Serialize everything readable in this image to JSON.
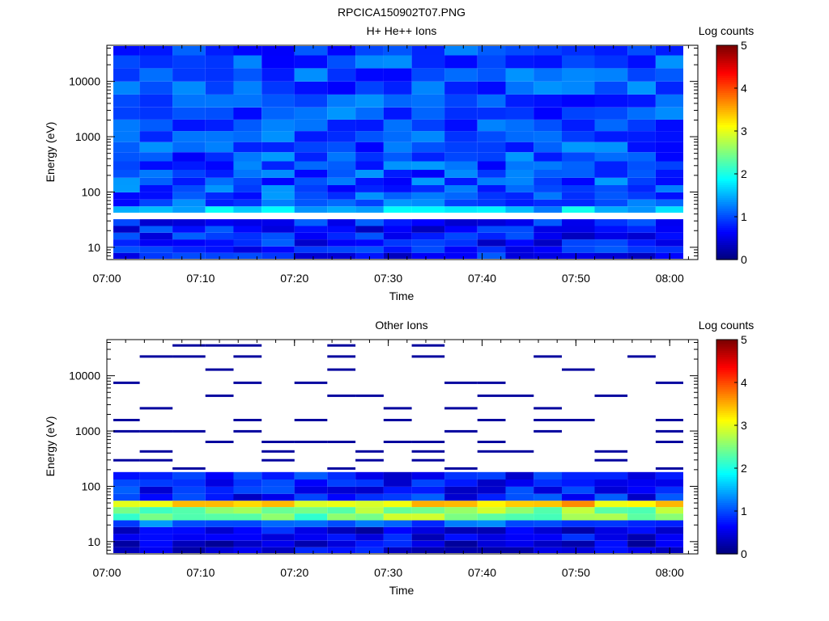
{
  "title": "RPCICA150902T07.PNG",
  "colorbar_label": "Log counts",
  "colormap": [
    "#00007f",
    "#0000ff",
    "#007fff",
    "#00ffff",
    "#7fff7f",
    "#ffff00",
    "#ff7f00",
    "#ff0000",
    "#7f0000"
  ],
  "chart_data": [
    {
      "type": "heatmap",
      "title": "H+ He++ Ions",
      "xlabel": "Time",
      "ylabel": "Energy (eV)",
      "x_ticks": [
        "07:00",
        "07:10",
        "07:20",
        "07:30",
        "07:40",
        "07:50",
        "08:00"
      ],
      "x_range": [
        "07:00",
        "08:03"
      ],
      "y_scale": "log",
      "y_ticks": [
        "10",
        "100",
        "1000",
        "10000"
      ],
      "y_range": [
        6,
        45000
      ],
      "color_range": [
        0,
        5
      ],
      "colorbar_ticks": [
        "0",
        "1",
        "2",
        "3",
        "4",
        "5"
      ],
      "time_bins": [
        "07:02",
        "07:05",
        "07:09",
        "07:12",
        "07:15",
        "07:18",
        "07:22",
        "07:25",
        "07:28",
        "07:31",
        "07:34",
        "07:38",
        "07:41",
        "07:44",
        "07:47",
        "07:50",
        "07:54",
        "07:57",
        "08:00"
      ],
      "energy_bins_eV": [
        7,
        9,
        12,
        16,
        21,
        28,
        37,
        48,
        63,
        85,
        114,
        155,
        212,
        300,
        430,
        640,
        1000,
        1600,
        2600,
        4400,
        7600,
        13000,
        23000,
        38000
      ],
      "bands": [
        {
          "energy_range_eV": [
            6,
            30
          ],
          "log_counts": 0.7
        },
        {
          "energy_range_eV": [
            30,
            35
          ],
          "log_counts": 0.9
        },
        {
          "energy_range_eV": [
            40,
            60
          ],
          "log_counts": 1.6
        },
        {
          "energy_range_eV": [
            60,
            45000
          ],
          "log_counts": 1.0
        }
      ]
    },
    {
      "type": "heatmap",
      "title": "Other Ions",
      "xlabel": "Time",
      "ylabel": "Energy (eV)",
      "x_ticks": [
        "07:00",
        "07:10",
        "07:20",
        "07:30",
        "07:40",
        "07:50",
        "08:00"
      ],
      "x_range": [
        "07:00",
        "08:03"
      ],
      "y_scale": "log",
      "y_ticks": [
        "10",
        "100",
        "1000",
        "10000"
      ],
      "y_range": [
        6,
        45000
      ],
      "color_range": [
        0,
        5
      ],
      "colorbar_ticks": [
        "0",
        "1",
        "2",
        "3",
        "4",
        "5"
      ],
      "time_bins": [
        "07:02",
        "07:05",
        "07:09",
        "07:12",
        "07:15",
        "07:18",
        "07:22",
        "07:25",
        "07:28",
        "07:31",
        "07:34",
        "07:38",
        "07:41",
        "07:44",
        "07:47",
        "07:50",
        "07:54",
        "07:57",
        "08:00"
      ],
      "energy_bins_eV": [
        7,
        9,
        12,
        16,
        21,
        28,
        37,
        48,
        63,
        85,
        114,
        155,
        212,
        300,
        430,
        640,
        1000,
        1600,
        2600,
        4400,
        7600,
        13000,
        23000,
        38000
      ],
      "bands": [
        {
          "energy_range_eV": [
            6,
            18
          ],
          "log_counts": 0.5
        },
        {
          "energy_range_eV": [
            18,
            28
          ],
          "log_counts": 1.0
        },
        {
          "energy_range_eV": [
            28,
            38
          ],
          "log_counts": 2.5
        },
        {
          "energy_range_eV": [
            38,
            48
          ],
          "log_counts": 4.0
        },
        {
          "energy_range_eV": [
            48,
            60
          ],
          "log_counts": 3.3
        },
        {
          "energy_range_eV": [
            60,
            200
          ],
          "log_counts": 0.7
        },
        {
          "energy_range_eV": [
            200,
            45000
          ],
          "log_counts": 0.1
        }
      ]
    }
  ]
}
